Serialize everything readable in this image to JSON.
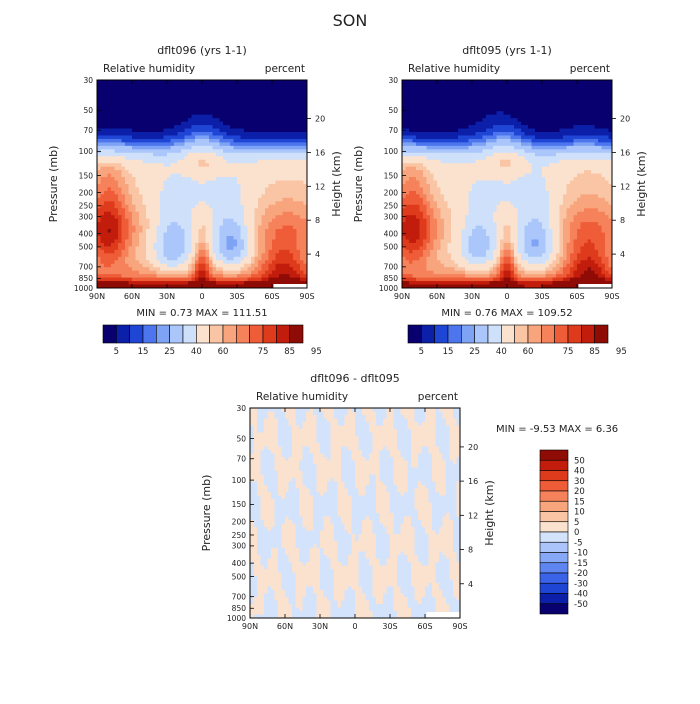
{
  "page_title": "SON",
  "palettes": {
    "humidity": [
      "#08006e",
      "#0b1fa8",
      "#1f45d4",
      "#4d76ee",
      "#7ea3f5",
      "#aac6fa",
      "#cfe0fb",
      "#fbe2cf",
      "#f9c5a4",
      "#f8a57e",
      "#f5825b",
      "#ee5c38",
      "#de3a1c",
      "#c21d0c",
      "#8f0b05"
    ],
    "difference": [
      "#08006e",
      "#0b1fa8",
      "#1f45d4",
      "#3b63e8",
      "#5f86f0",
      "#86a8f6",
      "#abc5fb",
      "#d3e3fb",
      "#fbe2cf",
      "#f9c5a4",
      "#f8a57e",
      "#f5825b",
      "#ee5c38",
      "#de3a1c",
      "#c21d0c",
      "#8f0b05"
    ]
  },
  "chart_data": [
    {
      "type": "heatmap",
      "title": "dflt096 (yrs 1-1)",
      "left_string": "Relative humidity",
      "right_string": "percent",
      "ylabel": "Pressure (mb)",
      "ylabel_right": "Height (km)",
      "x_ticks": [
        "90N",
        "60N",
        "30N",
        "0",
        "30S",
        "60S",
        "90S"
      ],
      "y_ticks": [
        "30",
        "50",
        "70",
        "100",
        "150",
        "200",
        "250",
        "300",
        "400",
        "500",
        "700",
        "850",
        "1000"
      ],
      "y_right_ticks": [
        "20",
        "16",
        "12",
        "8",
        "4"
      ],
      "pressure_range": [
        30,
        1000
      ],
      "scale": "log-pressure",
      "min_max_text": "MIN =    0.73   MAX = 111.51",
      "min": 0.73,
      "max": 111.51,
      "colorbar_labels": [
        "5",
        "15",
        "25",
        "40",
        "60",
        "75",
        "85",
        "95"
      ],
      "colorbar_levels": [
        5,
        10,
        15,
        20,
        25,
        30,
        40,
        50,
        60,
        65,
        70,
        75,
        80,
        85,
        90,
        95
      ],
      "field_variant": 1
    },
    {
      "type": "heatmap",
      "title": "dflt095 (yrs 1-1)",
      "left_string": "Relative humidity",
      "right_string": "percent",
      "ylabel": "Pressure (mb)",
      "ylabel_right": "Height (km)",
      "x_ticks": [
        "90N",
        "60N",
        "30N",
        "0",
        "30S",
        "60S",
        "90S"
      ],
      "y_ticks": [
        "30",
        "50",
        "70",
        "100",
        "150",
        "200",
        "250",
        "300",
        "400",
        "500",
        "700",
        "850",
        "1000"
      ],
      "y_right_ticks": [
        "20",
        "16",
        "12",
        "8",
        "4"
      ],
      "pressure_range": [
        30,
        1000
      ],
      "scale": "log-pressure",
      "min_max_text": "MIN =    0.76   MAX = 109.52",
      "min": 0.76,
      "max": 109.52,
      "colorbar_labels": [
        "5",
        "15",
        "25",
        "40",
        "60",
        "75",
        "85",
        "95"
      ],
      "colorbar_levels": [
        5,
        10,
        15,
        20,
        25,
        30,
        40,
        50,
        60,
        65,
        70,
        75,
        80,
        85,
        90,
        95
      ],
      "field_variant": 2
    },
    {
      "type": "heatmap",
      "title": "dflt096 - dflt095",
      "left_string": "Relative humidity",
      "right_string": "percent",
      "ylabel": "Pressure (mb)",
      "ylabel_right": "Height (km)",
      "x_ticks": [
        "90N",
        "60N",
        "30N",
        "0",
        "30S",
        "60S",
        "90S"
      ],
      "y_ticks": [
        "30",
        "50",
        "70",
        "100",
        "150",
        "200",
        "250",
        "300",
        "400",
        "500",
        "700",
        "850",
        "1000"
      ],
      "y_right_ticks": [
        "20",
        "16",
        "12",
        "8",
        "4"
      ],
      "pressure_range": [
        30,
        1000
      ],
      "scale": "log-pressure",
      "min_max_text": "MIN =   -9.53   MAX =    6.36",
      "min": -9.53,
      "max": 6.36,
      "colorbar_labels": [
        "50",
        "40",
        "30",
        "20",
        "15",
        "10",
        "5",
        "0",
        "-5",
        "-10",
        "-15",
        "-20",
        "-30",
        "-40",
        "-50"
      ],
      "colorbar_levels": [
        -50,
        -40,
        -30,
        -20,
        -15,
        -10,
        -5,
        0,
        5,
        10,
        15,
        20,
        30,
        40,
        50
      ]
    }
  ]
}
